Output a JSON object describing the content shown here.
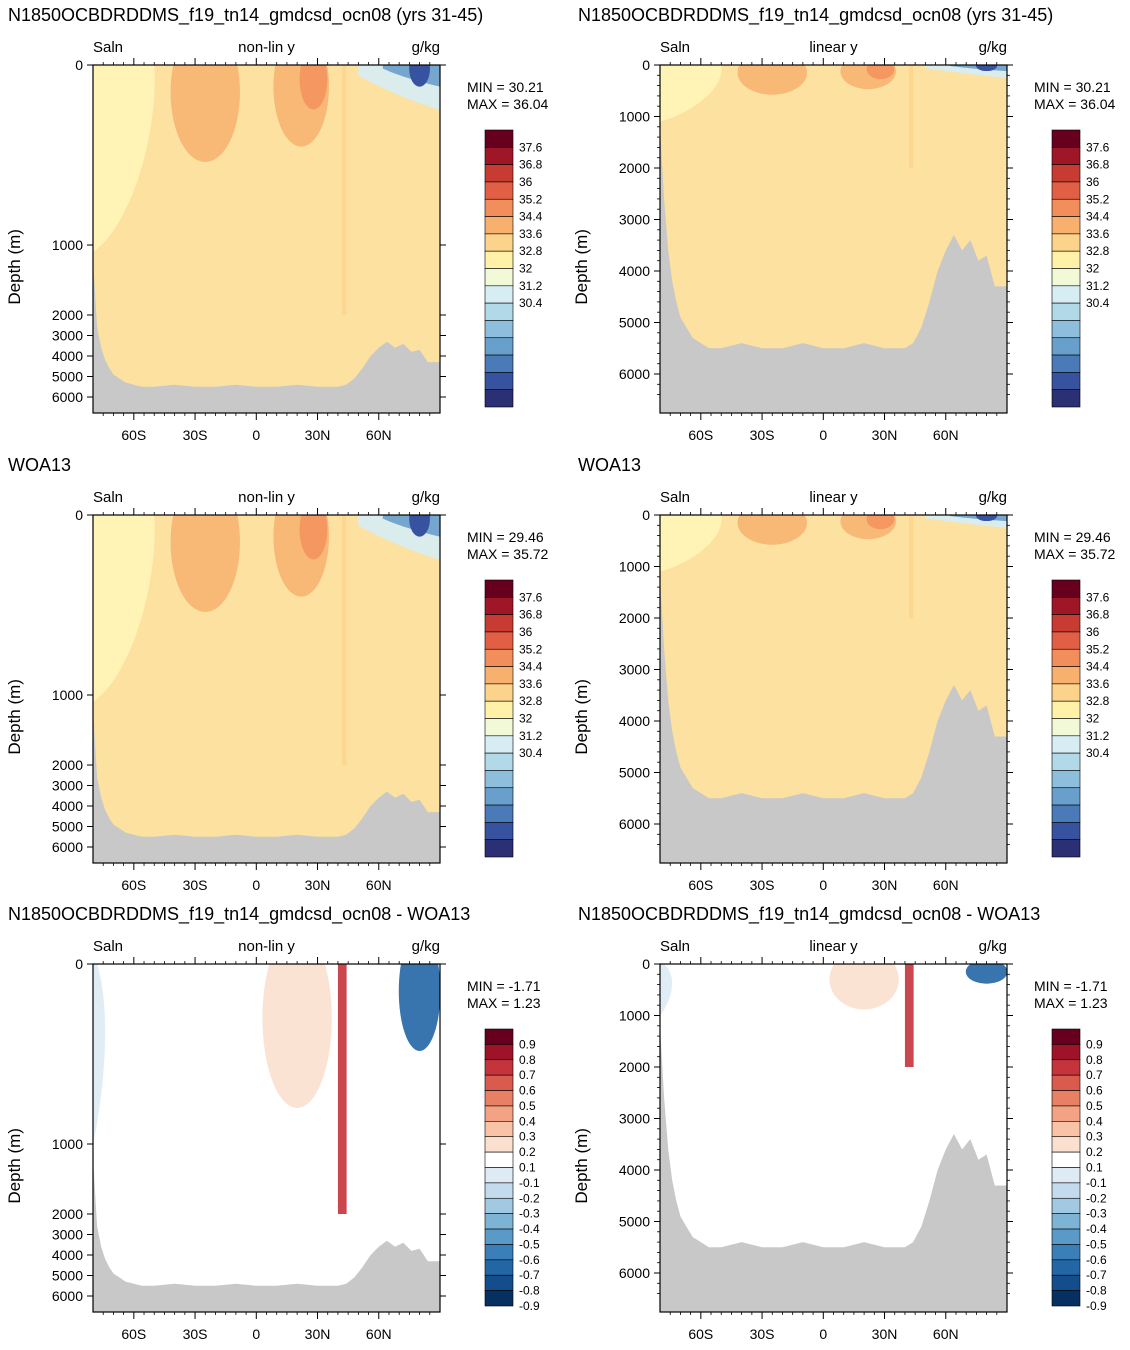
{
  "chart_data": [
    {
      "type": "heatmap",
      "title": "N1850OCBDRDDMS_f19_tn14_gmdcsd_ocn08 (yrs 31-45)",
      "field_label": "Saln",
      "scale_label": "non-lin y",
      "units": "g/kg",
      "ylabel": "Depth (m)",
      "y_scale": "non-linear",
      "y_ticks": [
        "0",
        "1000",
        "2000",
        "3000",
        "4000",
        "5000",
        "6000"
      ],
      "x_ticks": [
        "60S",
        "30S",
        "0",
        "30N",
        "60N"
      ],
      "min_label": "MIN =  30.21",
      "max_label": "MAX =  36.04",
      "colorbar_labels": [
        "37.6",
        "36.8",
        "36",
        "35.2",
        "34.4",
        "33.6",
        "32.8",
        "32",
        "31.2",
        "30.4"
      ],
      "grid": false
    },
    {
      "type": "heatmap",
      "title": "N1850OCBDRDDMS_f19_tn14_gmdcsd_ocn08 (yrs 31-45)",
      "field_label": "Saln",
      "scale_label": "linear y",
      "units": "g/kg",
      "ylabel": "Depth (m)",
      "y_scale": "linear",
      "y_ticks": [
        "0",
        "1000",
        "2000",
        "3000",
        "4000",
        "5000",
        "6000"
      ],
      "x_ticks": [
        "60S",
        "30S",
        "0",
        "30N",
        "60N"
      ],
      "min_label": "MIN =  30.21",
      "max_label": "MAX =  36.04",
      "colorbar_labels": [
        "37.6",
        "36.8",
        "36",
        "35.2",
        "34.4",
        "33.6",
        "32.8",
        "32",
        "31.2",
        "30.4"
      ],
      "grid": false
    },
    {
      "type": "heatmap",
      "title": "WOA13",
      "field_label": "Saln",
      "scale_label": "non-lin y",
      "units": "g/kg",
      "ylabel": "Depth (m)",
      "y_scale": "non-linear",
      "y_ticks": [
        "0",
        "1000",
        "2000",
        "3000",
        "4000",
        "5000",
        "6000"
      ],
      "x_ticks": [
        "60S",
        "30S",
        "0",
        "30N",
        "60N"
      ],
      "min_label": "MIN =  29.46",
      "max_label": "MAX =  35.72",
      "colorbar_labels": [
        "37.6",
        "36.8",
        "36",
        "35.2",
        "34.4",
        "33.6",
        "32.8",
        "32",
        "31.2",
        "30.4"
      ],
      "grid": false
    },
    {
      "type": "heatmap",
      "title": "WOA13",
      "field_label": "Saln",
      "scale_label": "linear y",
      "units": "g/kg",
      "ylabel": "Depth (m)",
      "y_scale": "linear",
      "y_ticks": [
        "0",
        "1000",
        "2000",
        "3000",
        "4000",
        "5000",
        "6000"
      ],
      "x_ticks": [
        "60S",
        "30S",
        "0",
        "30N",
        "60N"
      ],
      "min_label": "MIN =  29.46",
      "max_label": "MAX =  35.72",
      "colorbar_labels": [
        "37.6",
        "36.8",
        "36",
        "35.2",
        "34.4",
        "33.6",
        "32.8",
        "32",
        "31.2",
        "30.4"
      ],
      "grid": false
    },
    {
      "type": "heatmap",
      "title": "N1850OCBDRDDMS_f19_tn14_gmdcsd_ocn08 - WOA13",
      "field_label": "Saln",
      "scale_label": "non-lin y",
      "units": "g/kg",
      "ylabel": "Depth (m)",
      "y_scale": "non-linear",
      "y_ticks": [
        "0",
        "1000",
        "2000",
        "3000",
        "4000",
        "5000",
        "6000"
      ],
      "x_ticks": [
        "60S",
        "30S",
        "0",
        "30N",
        "60N"
      ],
      "min_label": "MIN = -1.71",
      "max_label": "MAX =   1.23",
      "colorbar_labels": [
        "0.9",
        "0.8",
        "0.7",
        "0.6",
        "0.5",
        "0.4",
        "0.3",
        "0.2",
        "0.1",
        "-0.1",
        "-0.2",
        "-0.3",
        "-0.4",
        "-0.5",
        "-0.6",
        "-0.7",
        "-0.8",
        "-0.9"
      ],
      "grid": false
    },
    {
      "type": "heatmap",
      "title": "N1850OCBDRDDMS_f19_tn14_gmdcsd_ocn08 - WOA13",
      "field_label": "Saln",
      "scale_label": "linear y",
      "units": "g/kg",
      "ylabel": "Depth (m)",
      "y_scale": "linear",
      "y_ticks": [
        "0",
        "1000",
        "2000",
        "3000",
        "4000",
        "5000",
        "6000"
      ],
      "x_ticks": [
        "60S",
        "30S",
        "0",
        "30N",
        "60N"
      ],
      "min_label": "MIN = -1.71",
      "max_label": "MAX =   1.23",
      "colorbar_labels": [
        "0.9",
        "0.8",
        "0.7",
        "0.6",
        "0.5",
        "0.4",
        "0.3",
        "0.2",
        "0.1",
        "-0.1",
        "-0.2",
        "-0.3",
        "-0.4",
        "-0.5",
        "-0.6",
        "-0.7",
        "-0.8",
        "-0.9"
      ],
      "grid": false
    }
  ],
  "palettes": {
    "salinity": [
      "#67001f",
      "#9f1727",
      "#c83b32",
      "#e05f45",
      "#f28e5b",
      "#f7b06e",
      "#fcd38b",
      "#fff1a8",
      "#f1f9d6",
      "#d6edf3",
      "#b1d9e8",
      "#8dbfdc",
      "#699fcb",
      "#4a7ab7",
      "#3753a0",
      "#2b2f73"
    ],
    "difference": [
      "#67001f",
      "#9e1327",
      "#c4343a",
      "#d95b4d",
      "#e88066",
      "#f3a283",
      "#f8c3a6",
      "#fbe0cf",
      "#ffffff",
      "#deebf4",
      "#c3dbec",
      "#a2c9e2",
      "#7db4d6",
      "#5a9ac8",
      "#3b7fb9",
      "#2266a6",
      "#134d8b",
      "#053061"
    ],
    "land": "#c8c8c8",
    "base_fill": "#fce1a0",
    "light_fill": "#fff4b5"
  }
}
